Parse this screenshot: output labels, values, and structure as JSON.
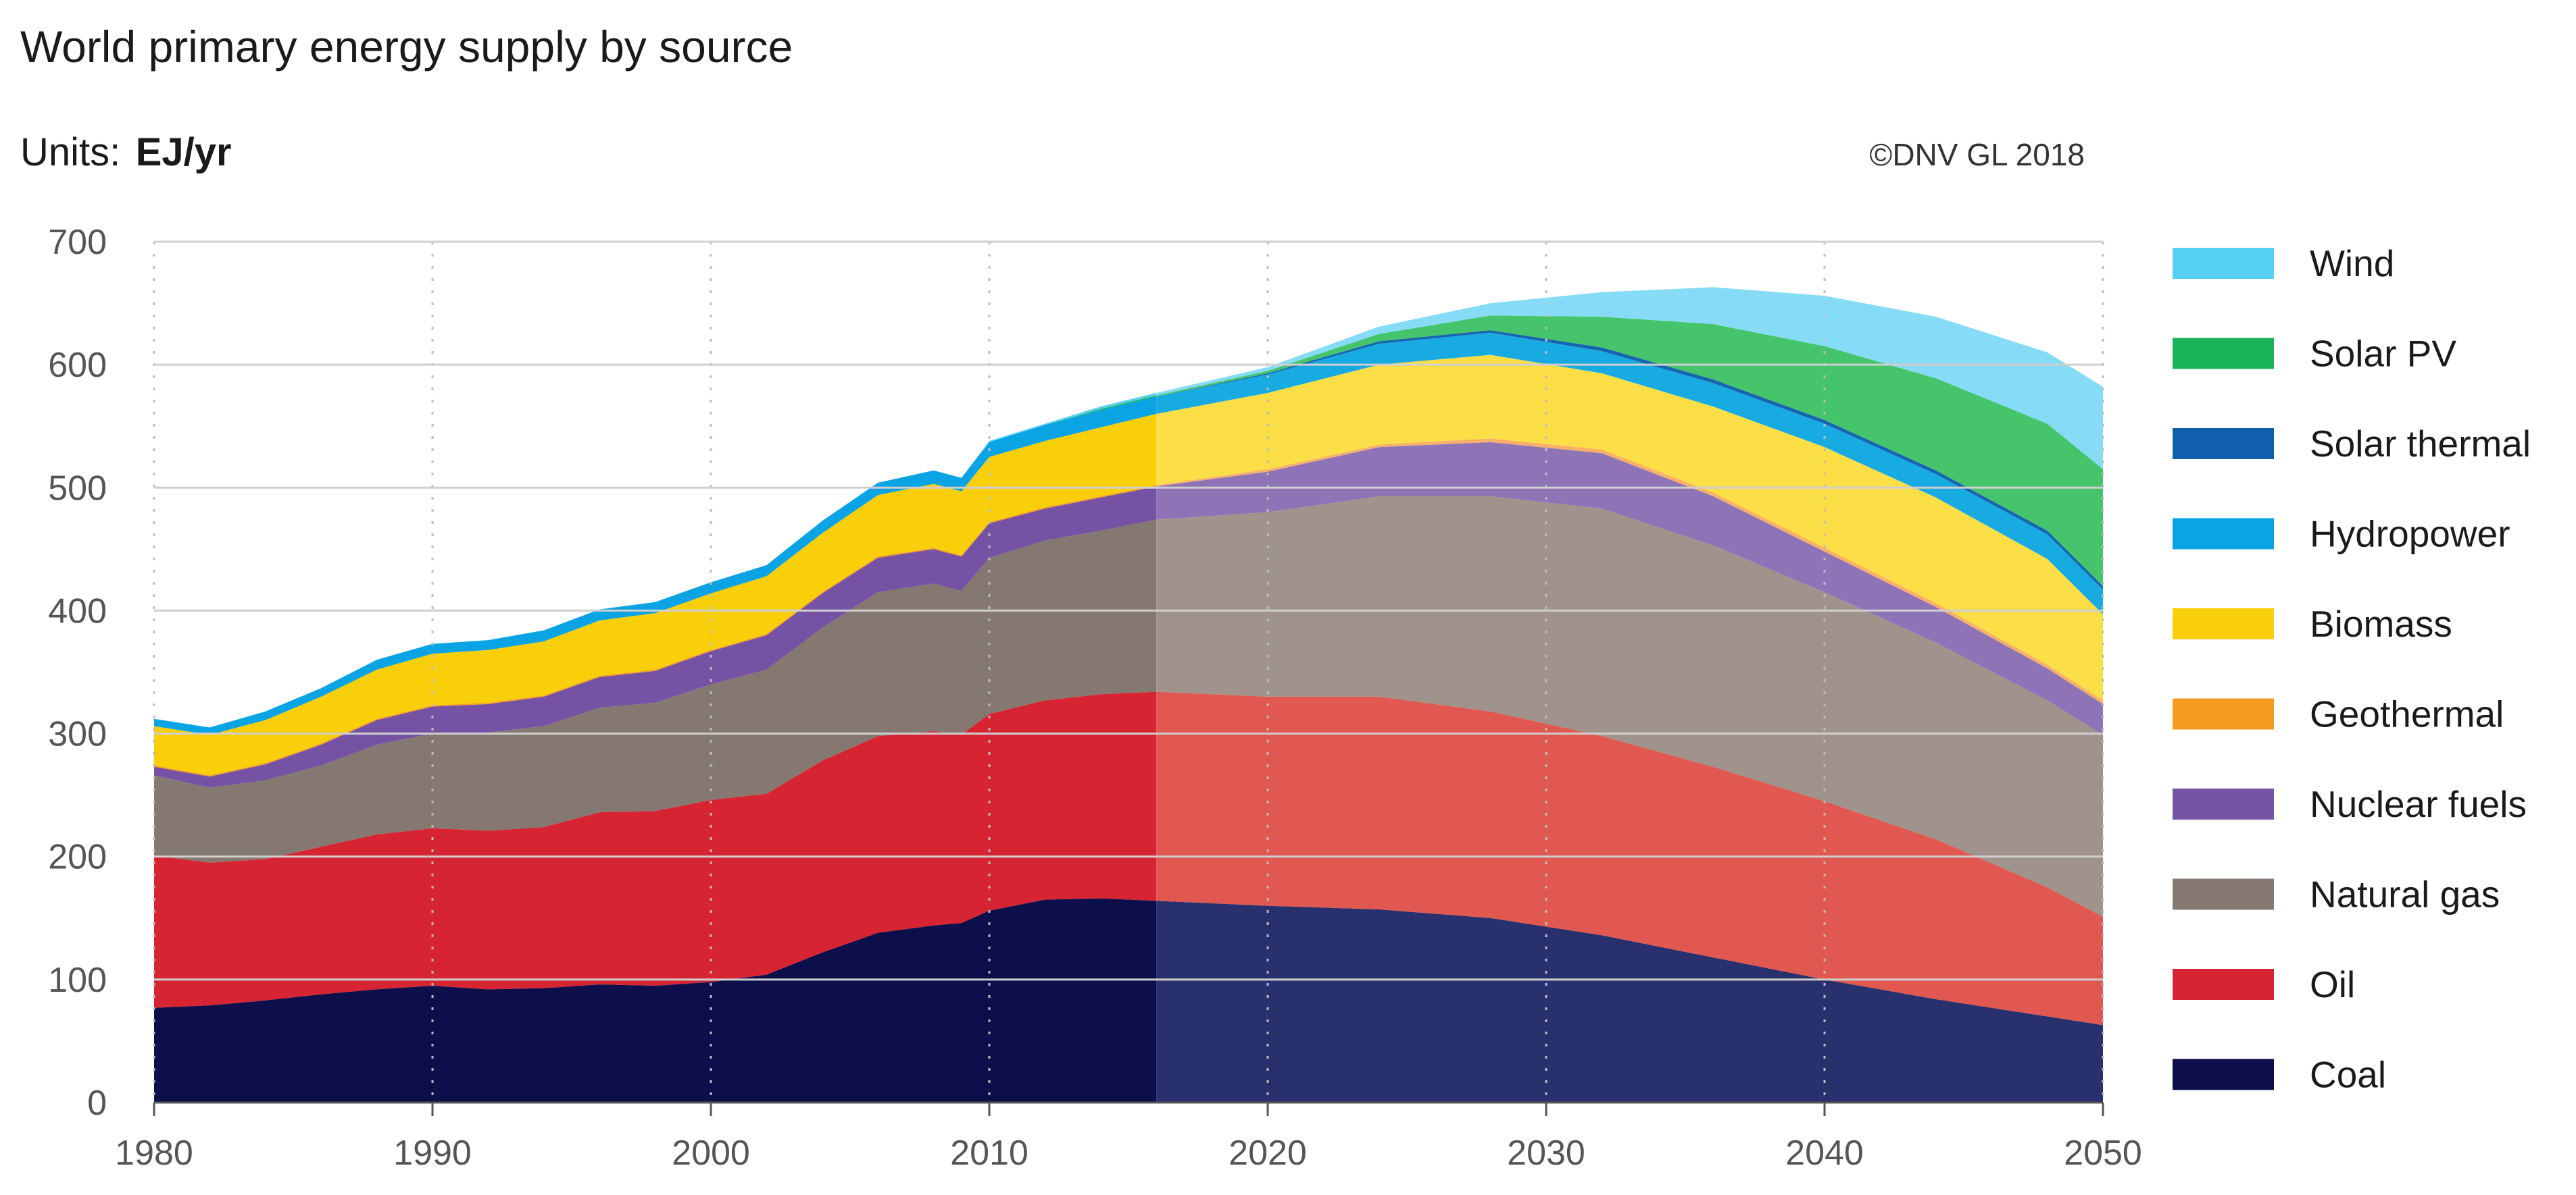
{
  "chart_data": {
    "type": "area",
    "stacked": true,
    "title": "World primary energy supply by source",
    "units_label": "Units:",
    "units_value": "EJ/yr",
    "credit": "©DNV GL 2018",
    "forecast_start_year": 2016,
    "xlim": [
      1980,
      2050
    ],
    "ylim": [
      0,
      700
    ],
    "x_ticks": [
      1980,
      1990,
      2000,
      2010,
      2020,
      2030,
      2040,
      2050
    ],
    "y_ticks": [
      0,
      100,
      200,
      300,
      400,
      500,
      600,
      700
    ],
    "x": [
      1980,
      1982,
      1984,
      1986,
      1988,
      1990,
      1992,
      1994,
      1996,
      1998,
      2000,
      2002,
      2004,
      2006,
      2008,
      2009,
      2010,
      2012,
      2014,
      2016,
      2020,
      2024,
      2028,
      2032,
      2036,
      2040,
      2044,
      2048,
      2050
    ],
    "legend_order": [
      "Wind",
      "Solar PV",
      "Solar thermal",
      "Hydropower",
      "Biomass",
      "Geothermal",
      "Nuclear fuels",
      "Natural gas",
      "Oil",
      "Coal"
    ],
    "series": [
      {
        "name": "Coal",
        "color": "#0c0f4a",
        "forecast_color": "#28306e",
        "values": [
          77,
          79,
          83,
          88,
          92,
          95,
          92,
          93,
          96,
          95,
          98,
          104,
          122,
          138,
          144,
          146,
          156,
          165,
          166,
          164,
          160,
          157,
          150,
          136,
          118,
          100,
          84,
          70,
          63
        ]
      },
      {
        "name": "Oil",
        "color": "#d62433",
        "forecast_color": "#e0584f",
        "values": [
          124,
          116,
          115,
          120,
          126,
          128,
          129,
          131,
          140,
          142,
          148,
          147,
          156,
          160,
          158,
          153,
          160,
          162,
          166,
          170,
          170,
          173,
          168,
          162,
          155,
          145,
          130,
          105,
          88
        ]
      },
      {
        "name": "Natural gas",
        "color": "#857870",
        "forecast_color": "#a0938b",
        "values": [
          65,
          61,
          64,
          66,
          73,
          77,
          80,
          82,
          85,
          88,
          94,
          101,
          108,
          117,
          120,
          117,
          127,
          130,
          133,
          140,
          150,
          163,
          175,
          185,
          180,
          170,
          160,
          152,
          148
        ]
      },
      {
        "name": "Nuclear fuels",
        "color": "#7652a4",
        "forecast_color": "#8e74b6",
        "values": [
          7,
          9,
          13,
          17,
          20,
          22,
          23,
          24,
          25,
          26,
          27,
          28,
          28,
          28,
          28,
          28,
          28,
          26,
          27,
          27,
          33,
          40,
          44,
          45,
          40,
          33,
          29,
          26,
          25
        ]
      },
      {
        "name": "Geothermal",
        "color": "#f79a20",
        "forecast_color": "#f7b06a",
        "values": [
          1,
          1,
          1,
          1,
          1,
          1,
          1,
          1,
          1,
          1,
          1,
          1,
          1,
          1,
          1,
          1,
          1,
          1,
          1,
          1,
          2,
          2,
          3,
          3,
          3,
          3,
          3,
          3,
          3
        ]
      },
      {
        "name": "Biomass",
        "color": "#f8cf08",
        "forecast_color": "#fcde47",
        "values": [
          32,
          33,
          35,
          38,
          40,
          42,
          43,
          44,
          45,
          46,
          46,
          47,
          48,
          50,
          52,
          52,
          53,
          54,
          56,
          58,
          62,
          65,
          68,
          62,
          70,
          82,
          86,
          86,
          70
        ]
      },
      {
        "name": "Hydropower",
        "color": "#0aa4e4",
        "forecast_color": "#18abe2",
        "values": [
          6,
          6,
          7,
          7,
          8,
          8,
          8,
          9,
          9,
          9,
          9,
          9,
          10,
          10,
          11,
          11,
          12,
          13,
          14,
          14,
          15,
          17,
          18,
          18,
          19,
          19,
          19,
          20,
          20
        ]
      },
      {
        "name": "Solar thermal",
        "color": "#0f5fad",
        "forecast_color": "#1665b0",
        "values": [
          0,
          0,
          0,
          0,
          0,
          0,
          0,
          0,
          0,
          0,
          0,
          0,
          0,
          0,
          0,
          0,
          0,
          0,
          0,
          0,
          1,
          2,
          2,
          3,
          3,
          3,
          3,
          3,
          3
        ]
      },
      {
        "name": "Solar PV",
        "color": "#1bb35a",
        "forecast_color": "#45c46c",
        "values": [
          0,
          0,
          0,
          0,
          0,
          0,
          0,
          0,
          0,
          0,
          0,
          0,
          0,
          0,
          0,
          0,
          0,
          0,
          1,
          1,
          2,
          6,
          12,
          25,
          45,
          60,
          75,
          87,
          95
        ]
      },
      {
        "name": "Wind",
        "color": "#55d0f3",
        "forecast_color": "#86dcf6",
        "values": [
          0,
          0,
          0,
          0,
          0,
          0,
          0,
          0,
          0,
          0,
          0,
          0,
          0,
          0,
          0,
          0,
          1,
          1,
          2,
          2,
          3,
          6,
          10,
          20,
          30,
          41,
          50,
          58,
          67
        ]
      }
    ]
  }
}
